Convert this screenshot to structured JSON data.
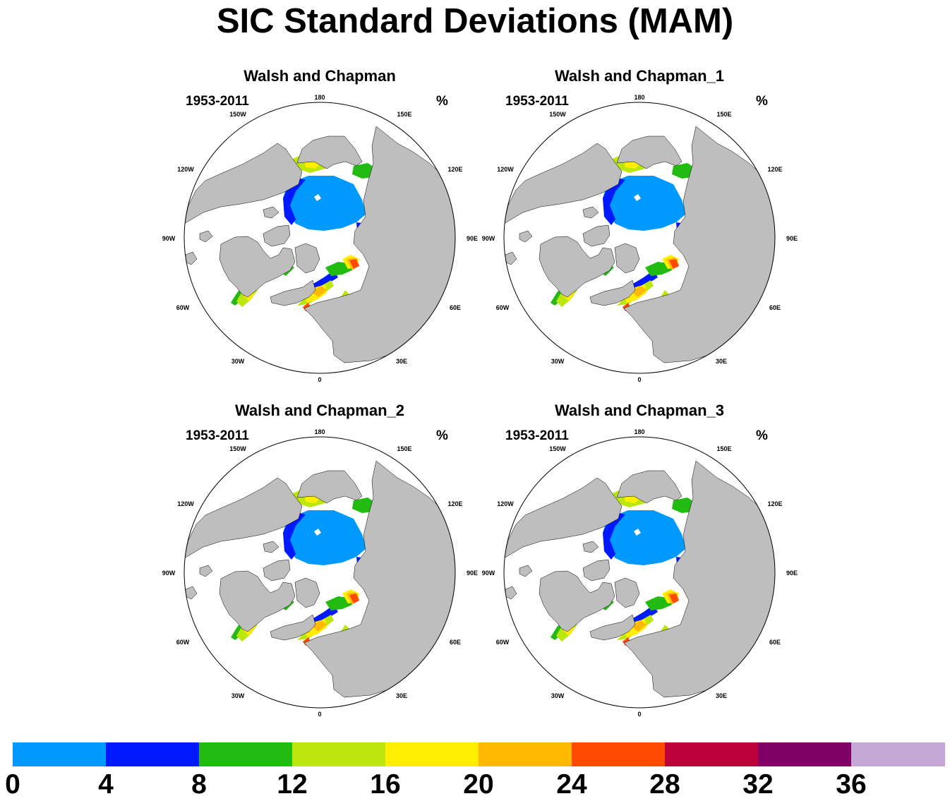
{
  "title": "SIC Standard Deviations (MAM)",
  "panels": [
    {
      "title": "Walsh and Chapman",
      "period": "1953-2011",
      "units": "%"
    },
    {
      "title": "Walsh and Chapman_1",
      "period": "1953-2011",
      "units": "%"
    },
    {
      "title": "Walsh and Chapman_2",
      "period": "1953-2011",
      "units": "%"
    },
    {
      "title": "Walsh and Chapman_3",
      "period": "1953-2011",
      "units": "%"
    }
  ],
  "longitude_labels": [
    "180",
    "150E",
    "120E",
    "90E",
    "60E",
    "30E",
    "0",
    "30W",
    "60W",
    "90W",
    "120W",
    "150W"
  ],
  "colorbar": {
    "labels": [
      "0",
      "4",
      "8",
      "12",
      "16",
      "20",
      "24",
      "28",
      "32",
      "36"
    ],
    "colors": [
      "#0099ff",
      "#0019ff",
      "#22bb11",
      "#bbe60e",
      "#ffee00",
      "#ffb900",
      "#ff4a00",
      "#bd0038",
      "#7f0066",
      "#c5a8d5"
    ]
  },
  "map_colors": {
    "land": "#bebebe",
    "ocean": "#ffffff"
  }
}
